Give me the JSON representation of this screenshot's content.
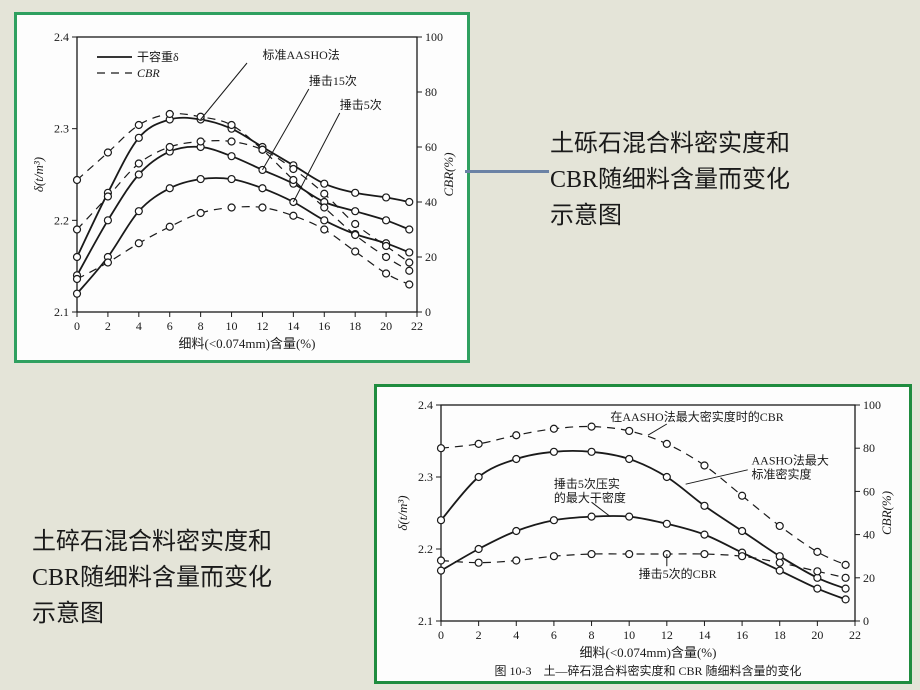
{
  "caption1": "土砾石混合料密实度和\nCBR随细料含量而变化\n示意图",
  "caption2": "土碎石混合料密实度和\nCBR随细料含量而变化\n示意图",
  "chart1": {
    "type": "scatter-line",
    "x_label": "细料(<0.074mm)含量(%)",
    "y_left_label": "δ(t/m³)",
    "y_right_label": "CBR(%)",
    "legend_solid": "干容重δ",
    "legend_dash": "CBR",
    "series_labels": [
      "标准AASHO法",
      "捶击15次",
      "捶击5次"
    ],
    "xlim": [
      0,
      22
    ],
    "xtick_step": 2,
    "ylim_left": [
      2.1,
      2.4
    ],
    "ytick_left": [
      2.1,
      2.2,
      2.3,
      2.4
    ],
    "ylim_right": [
      0,
      100
    ],
    "ytick_right_step": 20,
    "background_color": "#fdfdfd",
    "axis_color": "#1a1a1a",
    "solid_series": [
      {
        "name": "std",
        "pts": [
          [
            0,
            2.16
          ],
          [
            2,
            2.23
          ],
          [
            4,
            2.29
          ],
          [
            6,
            2.31
          ],
          [
            8,
            2.31
          ],
          [
            10,
            2.3
          ],
          [
            12,
            2.28
          ],
          [
            14,
            2.26
          ],
          [
            16,
            2.24
          ],
          [
            18,
            2.23
          ],
          [
            20,
            2.225
          ],
          [
            21.5,
            2.22
          ]
        ]
      },
      {
        "name": "c15",
        "pts": [
          [
            0,
            2.14
          ],
          [
            2,
            2.2
          ],
          [
            4,
            2.25
          ],
          [
            6,
            2.275
          ],
          [
            8,
            2.28
          ],
          [
            10,
            2.27
          ],
          [
            12,
            2.255
          ],
          [
            14,
            2.24
          ],
          [
            16,
            2.22
          ],
          [
            18,
            2.21
          ],
          [
            20,
            2.2
          ],
          [
            21.5,
            2.19
          ]
        ]
      },
      {
        "name": "c5",
        "pts": [
          [
            0,
            2.12
          ],
          [
            2,
            2.16
          ],
          [
            4,
            2.21
          ],
          [
            6,
            2.235
          ],
          [
            8,
            2.245
          ],
          [
            10,
            2.245
          ],
          [
            12,
            2.235
          ],
          [
            14,
            2.22
          ],
          [
            16,
            2.2
          ],
          [
            18,
            2.185
          ],
          [
            20,
            2.175
          ],
          [
            21.5,
            2.165
          ]
        ]
      }
    ],
    "dash_series": [
      {
        "name": "d_std",
        "pts": [
          [
            0,
            48
          ],
          [
            2,
            58
          ],
          [
            4,
            68
          ],
          [
            6,
            72
          ],
          [
            8,
            71
          ],
          [
            10,
            68
          ],
          [
            12,
            59
          ],
          [
            14,
            48
          ],
          [
            16,
            38
          ],
          [
            18,
            28
          ],
          [
            20,
            20
          ],
          [
            21.5,
            15
          ]
        ]
      },
      {
        "name": "d15",
        "pts": [
          [
            0,
            30
          ],
          [
            2,
            42
          ],
          [
            4,
            54
          ],
          [
            6,
            60
          ],
          [
            8,
            62
          ],
          [
            10,
            62
          ],
          [
            12,
            59
          ],
          [
            14,
            52
          ],
          [
            16,
            43
          ],
          [
            18,
            32
          ],
          [
            20,
            24
          ],
          [
            21.5,
            18
          ]
        ]
      },
      {
        "name": "d5",
        "pts": [
          [
            0,
            12
          ],
          [
            2,
            18
          ],
          [
            4,
            25
          ],
          [
            6,
            31
          ],
          [
            8,
            36
          ],
          [
            10,
            38
          ],
          [
            12,
            38
          ],
          [
            14,
            35
          ],
          [
            16,
            30
          ],
          [
            18,
            22
          ],
          [
            20,
            14
          ],
          [
            21.5,
            10
          ]
        ]
      }
    ]
  },
  "chart2": {
    "type": "scatter-line",
    "fig_caption": "图 10-3　土—碎石混合料密实度和 CBR 随细料含量的变化",
    "x_label": "细料(<0.074mm)含量(%)",
    "y_left_label": "δ(t/m³)",
    "y_right_label": "CBR(%)",
    "series_labels": [
      "在AASHO法最大密实度时的CBR",
      "AASHO法最大标准密实度",
      "捶击5次压实的最大干密度",
      "捶击5次的CBR"
    ],
    "xlim": [
      0,
      22
    ],
    "xtick_step": 2,
    "ylim_left": [
      2.1,
      2.4
    ],
    "ytick_left": [
      2.1,
      2.2,
      2.3,
      2.4
    ],
    "ylim_right": [
      0,
      100
    ],
    "ytick_right_step": 20,
    "solid_series": [
      {
        "name": "aasho_dens",
        "pts": [
          [
            0,
            2.24
          ],
          [
            2,
            2.3
          ],
          [
            4,
            2.325
          ],
          [
            6,
            2.335
          ],
          [
            8,
            2.335
          ],
          [
            10,
            2.325
          ],
          [
            12,
            2.3
          ],
          [
            14,
            2.26
          ],
          [
            16,
            2.225
          ],
          [
            18,
            2.19
          ],
          [
            20,
            2.16
          ],
          [
            21.5,
            2.145
          ]
        ]
      },
      {
        "name": "c5_dens",
        "pts": [
          [
            0,
            2.17
          ],
          [
            2,
            2.2
          ],
          [
            4,
            2.225
          ],
          [
            6,
            2.24
          ],
          [
            8,
            2.245
          ],
          [
            10,
            2.245
          ],
          [
            12,
            2.235
          ],
          [
            14,
            2.22
          ],
          [
            16,
            2.195
          ],
          [
            18,
            2.17
          ],
          [
            20,
            2.145
          ],
          [
            21.5,
            2.13
          ]
        ]
      }
    ],
    "dash_series": [
      {
        "name": "cbr_at_max",
        "pts": [
          [
            0,
            80
          ],
          [
            2,
            82
          ],
          [
            4,
            86
          ],
          [
            6,
            89
          ],
          [
            8,
            90
          ],
          [
            10,
            88
          ],
          [
            12,
            82
          ],
          [
            14,
            72
          ],
          [
            16,
            58
          ],
          [
            18,
            44
          ],
          [
            20,
            32
          ],
          [
            21.5,
            26
          ]
        ]
      },
      {
        "name": "cbr_c5",
        "pts": [
          [
            0,
            28
          ],
          [
            2,
            27
          ],
          [
            4,
            28
          ],
          [
            6,
            30
          ],
          [
            8,
            31
          ],
          [
            10,
            31
          ],
          [
            12,
            31
          ],
          [
            14,
            31
          ],
          [
            16,
            30
          ],
          [
            18,
            27
          ],
          [
            20,
            23
          ],
          [
            21.5,
            20
          ]
        ]
      }
    ]
  }
}
